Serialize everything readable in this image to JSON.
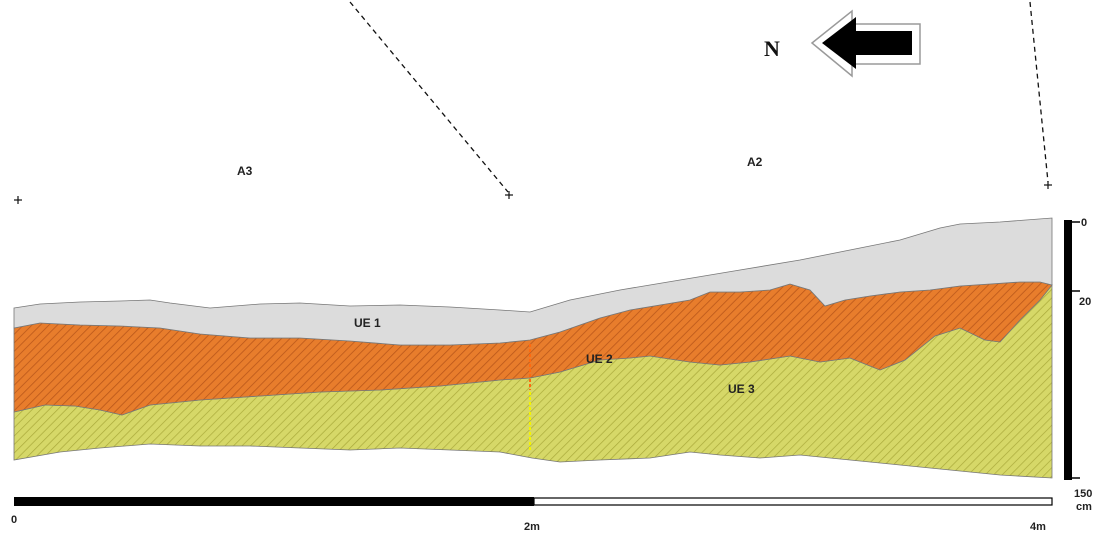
{
  "orientation": {
    "label": "N",
    "icon": "north-arrow-icon"
  },
  "sectors": {
    "left": "A3",
    "right": "A2"
  },
  "layers": [
    {
      "label": "UE 1",
      "color": "#dcdcdc",
      "pattern": "solid"
    },
    {
      "label": "UE 2",
      "color": "#e3782b",
      "pattern": "diagonal-hatch"
    },
    {
      "label": "UE 3",
      "color": "#cfd05a",
      "pattern": "diagonal-hatch"
    }
  ],
  "horizontal_scale": {
    "ticks": [
      "0",
      "2m",
      "4m"
    ]
  },
  "vertical_scale": {
    "ticks": [
      "0",
      "20",
      "150"
    ],
    "unit": "cm"
  }
}
